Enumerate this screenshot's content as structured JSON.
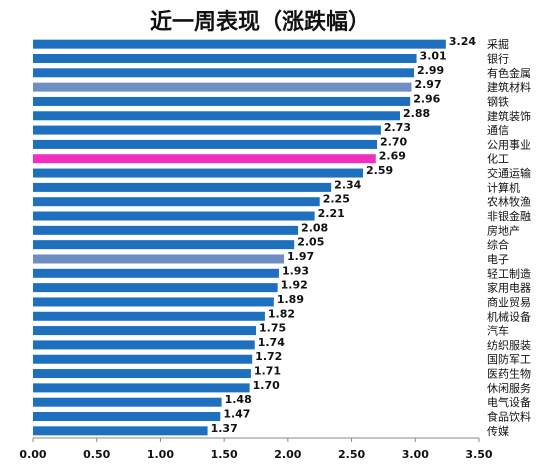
{
  "chart_data": {
    "type": "bar",
    "orientation": "horizontal",
    "title": "近一周表现（涨跌幅）",
    "categories": [
      "采掘",
      "银行",
      "有色金属",
      "建筑材料",
      "钢铁",
      "建筑装饰",
      "通信",
      "公用事业",
      "化工",
      "交通运输",
      "计算机",
      "农林牧渔",
      "非银金融",
      "房地产",
      "综合",
      "电子",
      "轻工制造",
      "家用电器",
      "商业贸易",
      "机械设备",
      "汽车",
      "纺织服装",
      "国防军工",
      "医药生物",
      "休闲服务",
      "电气设备",
      "食品饮料",
      "传媒"
    ],
    "values": [
      3.24,
      3.01,
      2.99,
      2.97,
      2.96,
      2.88,
      2.73,
      2.7,
      2.69,
      2.59,
      2.34,
      2.25,
      2.21,
      2.08,
      2.05,
      1.97,
      1.93,
      1.92,
      1.89,
      1.82,
      1.75,
      1.74,
      1.72,
      1.71,
      1.7,
      1.48,
      1.47,
      1.37
    ],
    "value_labels": [
      "3.24",
      "3.01",
      "2.99",
      "2.97",
      "2.96",
      "2.88",
      "2.73",
      "2.70",
      "2.69",
      "2.59",
      "2.34",
      "2.25",
      "2.21",
      "2.08",
      "2.05",
      "1.97",
      "1.93",
      "1.92",
      "1.89",
      "1.82",
      "1.75",
      "1.74",
      "1.72",
      "1.71",
      "1.70",
      "1.48",
      "1.47",
      "1.37"
    ],
    "xlim": [
      0,
      3.5
    ],
    "xticks": [
      "0.00",
      "0.50",
      "1.00",
      "1.50",
      "2.00",
      "2.50",
      "3.00",
      "3.50"
    ],
    "colors": {
      "default": "#1f6fbf",
      "highlight_light": "#6f8fc4",
      "highlight_pink": "#ee2fbf"
    },
    "bar_colors": [
      "default",
      "default",
      "default",
      "highlight_light",
      "default",
      "default",
      "default",
      "default",
      "highlight_pink",
      "default",
      "default",
      "default",
      "default",
      "default",
      "default",
      "highlight_light",
      "default",
      "default",
      "default",
      "default",
      "default",
      "default",
      "default",
      "default",
      "default",
      "default",
      "default",
      "default"
    ],
    "grid": false,
    "legend": "none"
  }
}
